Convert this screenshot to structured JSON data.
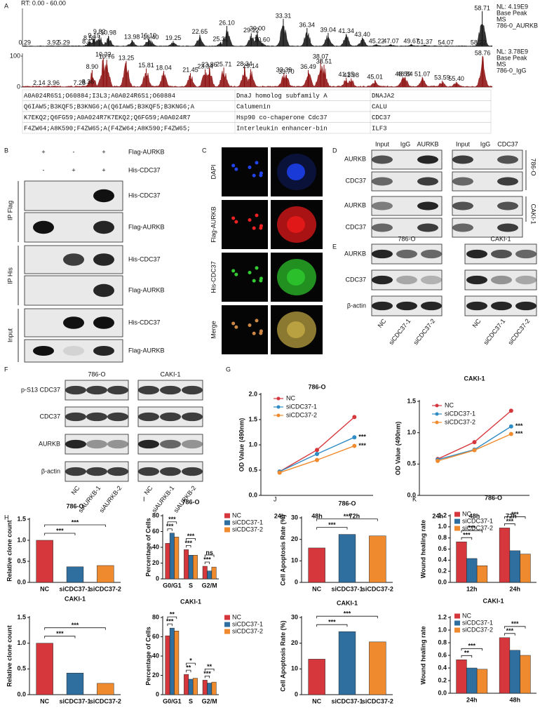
{
  "panel_letters": [
    "A",
    "B",
    "C",
    "D",
    "E",
    "F",
    "G",
    "H",
    "I",
    "J",
    "K"
  ],
  "ms": {
    "rt_label": "RT: 0.00 - 60.00",
    "traces": [
      {
        "color": "#111111",
        "info": [
          "NL: 4.19E9",
          "Base Peak",
          "MS",
          "786-0_AURKB"
        ],
        "xlim": [
          0,
          60
        ],
        "ylim": [
          0,
          100
        ],
        "x": [
          0.29,
          3.92,
          5.29,
          8.41,
          8.58,
          9.15,
          9.82,
          10.98,
          13.98,
          16.1,
          16.4,
          19.25,
          22.65,
          25.31,
          26.1,
          29.22,
          30.0,
          30.6,
          33.31,
          36.34,
          39.04,
          41.34,
          43.4,
          45.22,
          47.07,
          49.67,
          51.37,
          54.07,
          58.22,
          58.71
        ],
        "y": [
          2,
          2,
          2,
          5,
          15,
          22,
          33,
          30,
          18,
          22,
          17,
          15,
          33,
          12,
          58,
          37,
          42,
          10,
          78,
          52,
          38,
          35,
          25,
          6,
          6,
          6,
          4,
          2,
          2,
          100
        ],
        "value_labels": [
          "0.29",
          "3.92",
          "5.29",
          "8.41",
          "8.58",
          "9.15",
          "9.82",
          "10.98",
          "13.98",
          "16.10",
          "16.40",
          "19.25",
          "22.65",
          "25.31",
          "26.10",
          "29.22",
          "30.00",
          "30.60",
          "33.31",
          "36.34",
          "39.04",
          "41.34",
          "43.40",
          "45.22",
          "47.07",
          "49.67",
          "51.37",
          "54.07",
          "58.22",
          "58.71"
        ]
      },
      {
        "color": "#8b0a0a",
        "info": [
          "NL: 3.78E9",
          "Base Peak",
          "MS",
          "786-0_IgG"
        ],
        "xlim": [
          0,
          60
        ],
        "ylim": [
          0,
          100
        ],
        "yticks": [
          0,
          100
        ],
        "x": [
          2.14,
          3.96,
          7.28,
          8.36,
          8.9,
          10.32,
          10.76,
          13.25,
          15.81,
          18.04,
          21.45,
          23.34,
          23.86,
          25.71,
          28.34,
          29.14,
          33.39,
          33.7,
          36.49,
          38.07,
          38.51,
          41.35,
          41.98,
          45.01,
          48.59,
          48.84,
          51.07,
          53.59,
          55.4,
          58.76
        ],
        "y": [
          3,
          3,
          3,
          6,
          55,
          95,
          88,
          84,
          60,
          52,
          45,
          57,
          62,
          63,
          65,
          58,
          45,
          40,
          55,
          88,
          72,
          30,
          28,
          22,
          32,
          32,
          32,
          20,
          17,
          100
        ],
        "value_labels": [
          "2.14",
          "3.96",
          "7.28",
          "8.36",
          "8.90",
          "10.32",
          "10.76",
          "13.25",
          "15.81",
          "18.04",
          "21.45",
          "23.34",
          "23.86",
          "25.71",
          "28.34",
          "29.14",
          "33.39",
          "33.70",
          "36.49",
          "38.07",
          "38.51",
          "41.35",
          "41.98",
          "45.01",
          "48.59",
          "48.84",
          "51.07",
          "53.59",
          "55.40",
          "58.76"
        ]
      }
    ],
    "table": {
      "highlight_row": 2,
      "highlight_color": "#e8262c",
      "rows": [
        [
          "A0A024R6S1;O60884;I3L3;A0A024R6S1;O60884",
          "DnaJ homolog subfamily A",
          "DNAJA2"
        ],
        [
          "Q6IAW5;B3KQF5;B3KNG6;A(Q6IAW5;B3KQF5;B3KNG6;A",
          "Calumenin",
          "CALU"
        ],
        [
          "K7EKQ2;Q6FG59;A0A024R7K7EKQ2;Q6FG59;A0A024R7",
          "Hsp90 co-chaperone Cdc37",
          "CDC37"
        ],
        [
          "F4ZW64;A8K590;F4ZW65;A(F4ZW64;A8K590;F4ZW65;",
          "Interleukin enhancer-bin",
          "ILF3"
        ]
      ]
    }
  },
  "blot_B": {
    "signs": [
      [
        "+",
        "-",
        "+"
      ],
      [
        "-",
        "+",
        "+"
      ]
    ],
    "sign_labels": [
      "Flag-AURKB",
      "His-CDC37"
    ],
    "band_labels": [
      "His-CDC37",
      "Flag-AURKB",
      "His-CDC37",
      "Flag-AURKB",
      "His-CDC37",
      "Flag-AURKB"
    ],
    "group_labels": [
      "IP Flag",
      "IP His",
      "Input"
    ]
  },
  "if_C": {
    "row_labels": [
      "DAPI",
      "Flag-AURKB",
      "His-CDC37",
      "Merge"
    ]
  },
  "blot_D": {
    "columns": [
      [
        "Input",
        "IgG",
        "AURKB"
      ],
      [
        "Input",
        "IgG",
        "CDC37"
      ]
    ],
    "row_labels": [
      "AURKB",
      "CDC37",
      "AURKB",
      "CDC37"
    ],
    "cell_lines": [
      "786-O",
      "CAKI-1"
    ]
  },
  "blot_E": {
    "cell_lines": [
      "786-O",
      "CAKI-1"
    ],
    "row_labels": [
      "AURKB",
      "CDC37",
      "β-actin"
    ],
    "lanes": [
      "NC",
      "siCDC37-1",
      "siCDC37-2"
    ]
  },
  "blot_F": {
    "cell_lines": [
      "786-O",
      "CAKI-1"
    ],
    "row_labels": [
      "p-S13 CDC37",
      "CDC37",
      "AURKB",
      "β-actin"
    ],
    "lanes": [
      "NC",
      "siAURKB-1",
      "siAURKB-2"
    ]
  },
  "chart_data": [
    {
      "type": "line",
      "title": "786-O",
      "y_label": "OD Value (490nm)",
      "categories": [
        "24h",
        "48h",
        "72h"
      ],
      "legend": "upper left",
      "series": [
        {
          "name": "NC",
          "color": "#d6373c",
          "values": [
            0.47,
            0.9,
            1.55
          ]
        },
        {
          "name": "siCDC37-1",
          "color": "#2f8cc4",
          "values": [
            0.47,
            0.82,
            1.15
          ]
        },
        {
          "name": "siCDC37-2",
          "color": "#f08a2c",
          "values": [
            0.45,
            0.7,
            0.98
          ]
        }
      ],
      "ylim": [
        0,
        2
      ],
      "yticks": [
        {
          "value": 0,
          "label": "0.0"
        },
        0.5,
        {
          "value": 1,
          "label": "1.0"
        },
        1.5,
        {
          "value": 2,
          "label": "2.0"
        }
      ],
      "annotations": [
        "***",
        "***"
      ]
    },
    {
      "type": "line",
      "title": "CAKI-1",
      "y_label": "OD Value (490nm)",
      "categories": [
        "24h",
        "48h",
        "72h"
      ],
      "legend": "upper left",
      "series": [
        {
          "name": "NC",
          "color": "#d6373c",
          "values": [
            0.58,
            0.85,
            1.35
          ]
        },
        {
          "name": "siCDC37-1",
          "color": "#2f8cc4",
          "values": [
            0.57,
            0.73,
            1.1
          ]
        },
        {
          "name": "siCDC37-2",
          "color": "#f08a2c",
          "values": [
            0.55,
            0.72,
            0.98
          ]
        }
      ],
      "ylim": [
        0,
        1.5
      ],
      "yticks": [
        {
          "value": 0,
          "label": "0.0"
        },
        0.5,
        {
          "value": 1,
          "label": "1.0"
        },
        1.5
      ],
      "annotations": [
        "***",
        "***"
      ]
    },
    {
      "type": "bar",
      "title": "786-O",
      "y_label": "Relative clone count",
      "categories": [
        "NC",
        "siCDC37-1",
        "siCDC37-2"
      ],
      "values": [
        1.0,
        0.37,
        0.4
      ],
      "colors": [
        "#d6373c",
        "#2e6fa0",
        "#ef8a2e"
      ],
      "ylim": [
        0,
        1.5
      ],
      "yticks": [
        {
          "value": 0,
          "label": "0.0"
        },
        0.5,
        {
          "value": 1,
          "label": "1.0"
        },
        1.5
      ],
      "significance": [
        "***",
        "***"
      ]
    },
    {
      "type": "bar",
      "title": "CAKI-1",
      "y_label": "Relative clone count",
      "categories": [
        "NC",
        "siCDC37-1",
        "siCDC37-2"
      ],
      "values": [
        1.0,
        0.42,
        0.22
      ],
      "colors": [
        "#d6373c",
        "#2e6fa0",
        "#ef8a2e"
      ],
      "ylim": [
        0,
        1.5
      ],
      "yticks": [
        {
          "value": 0,
          "label": "0.0"
        },
        0.5,
        {
          "value": 1,
          "label": "1.0"
        },
        1.5
      ],
      "significance": [
        "***",
        "***"
      ]
    },
    {
      "type": "grouped_bar",
      "title": "786-O",
      "y_label": "Percentage of Cells",
      "categories": [
        "G0/G1",
        "S",
        "G2/M"
      ],
      "legend": "right",
      "series": [
        {
          "name": "NC",
          "color": "#d6373c",
          "values": [
            45,
            37,
            16
          ]
        },
        {
          "name": "siCDC37-1",
          "color": "#2e6fa0",
          "values": [
            58,
            30,
            10
          ]
        },
        {
          "name": "siCDC37-2",
          "color": "#ef8a2e",
          "values": [
            53,
            30,
            15
          ]
        }
      ],
      "ylim": [
        0,
        80
      ],
      "yticks": [
        0,
        20,
        40,
        60,
        80
      ],
      "significance": [
        [
          "***",
          "***"
        ],
        [
          "***",
          "***"
        ],
        [
          "***",
          "ns"
        ]
      ]
    },
    {
      "type": "grouped_bar",
      "title": "CAKI-1",
      "y_label": "Percentage of Cells",
      "categories": [
        "G0/G1",
        "S",
        "G2/M"
      ],
      "legend": "right",
      "series": [
        {
          "name": "NC",
          "color": "#d6373c",
          "values": [
            61,
            21,
            15
          ]
        },
        {
          "name": "siCDC37-1",
          "color": "#2e6fa0",
          "values": [
            69,
            16,
            12
          ]
        },
        {
          "name": "siCDC37-2",
          "color": "#ef8a2e",
          "values": [
            66,
            17,
            13
          ]
        }
      ],
      "ylim": [
        0,
        80
      ],
      "yticks": [
        0,
        20,
        40,
        60,
        80
      ],
      "significance": [
        [
          "***",
          "**"
        ],
        [
          "**",
          "*"
        ],
        [
          "***",
          "**"
        ]
      ]
    },
    {
      "type": "bar",
      "title": "786-O",
      "y_label": "Cell Apoptosis Rate (%)",
      "categories": [
        "NC",
        "siCDC37-1",
        "siCDC37-2"
      ],
      "values": [
        16,
        22.3,
        21.6
      ],
      "colors": [
        "#d6373c",
        "#2e6fa0",
        "#ef8a2e"
      ],
      "ylim": [
        0,
        30
      ],
      "yticks": [
        0,
        10,
        20,
        30
      ],
      "significance": [
        "***",
        "***"
      ]
    },
    {
      "type": "bar",
      "title": "CAKI-1",
      "y_label": "Cell Apoptosis Rate (%)",
      "categories": [
        "NC",
        "siCDC37-1",
        "siCDC37-2"
      ],
      "values": [
        13.8,
        24.5,
        20.5
      ],
      "colors": [
        "#d6373c",
        "#2e6fa0",
        "#ef8a2e"
      ],
      "ylim": [
        0,
        30
      ],
      "yticks": [
        0,
        10,
        20,
        30
      ],
      "significance": [
        "***",
        "***"
      ]
    },
    {
      "type": "grouped_bar",
      "title": "786-O",
      "y_label": "Wound healing rate",
      "categories": [
        "12h",
        "24h"
      ],
      "legend": "upper left",
      "series": [
        {
          "name": "NC",
          "color": "#d6373c",
          "values": [
            0.73,
            0.98
          ]
        },
        {
          "name": "siCDC37-1",
          "color": "#2e6fa0",
          "values": [
            0.43,
            0.57
          ]
        },
        {
          "name": "siCDC37-2",
          "color": "#ef8a2e",
          "values": [
            0.3,
            0.51
          ]
        }
      ],
      "ylim": [
        0,
        1.2
      ],
      "yticks": [
        {
          "value": 0,
          "label": "0.0"
        },
        0.2,
        0.4,
        0.6,
        0.8,
        {
          "value": 1,
          "label": "1.0"
        },
        1.2
      ],
      "significance": [
        [
          "***",
          "***"
        ],
        [
          "***",
          "***"
        ]
      ]
    },
    {
      "type": "grouped_bar",
      "title": "CAKI-1",
      "y_label": "Wound healing rate",
      "categories": [
        "24h",
        "48h"
      ],
      "legend": "upper left",
      "series": [
        {
          "name": "NC",
          "color": "#d6373c",
          "values": [
            0.53,
            0.88
          ]
        },
        {
          "name": "siCDC37-1",
          "color": "#2e6fa0",
          "values": [
            0.4,
            0.68
          ]
        },
        {
          "name": "siCDC37-2",
          "color": "#ef8a2e",
          "values": [
            0.38,
            0.6
          ]
        }
      ],
      "ylim": [
        0,
        1.2
      ],
      "yticks": [
        {
          "value": 0,
          "label": "0.0"
        },
        0.2,
        0.4,
        0.6,
        0.8,
        {
          "value": 1,
          "label": "1.0"
        },
        1.2
      ],
      "significance": [
        [
          "**",
          "***"
        ],
        [
          "***",
          "***"
        ]
      ]
    }
  ]
}
